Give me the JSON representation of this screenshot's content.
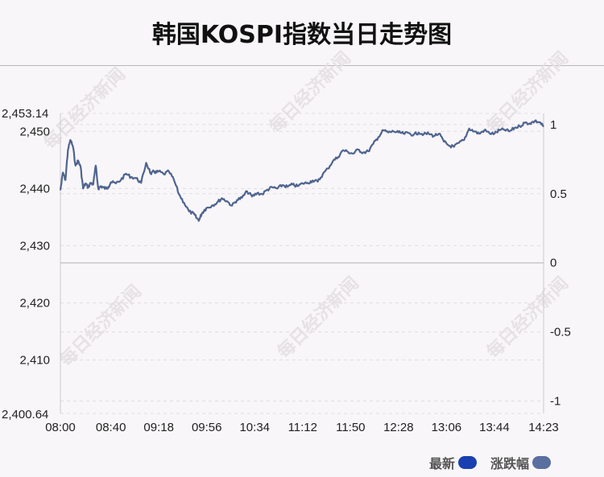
{
  "title": "韩国KOSPI指数当日走势图",
  "watermark": "每日经济新闻",
  "legend": [
    {
      "label": "最新",
      "color": "#1a3fb0"
    },
    {
      "label": "涨跌幅",
      "color": "#5a6fa0"
    }
  ],
  "colors": {
    "line": "#4f6490",
    "axis": "#cccccc",
    "grid": "#e0dde0",
    "text": "#222222"
  },
  "chart_data": {
    "type": "line",
    "ylim": [
      2400.64,
      2453.14
    ],
    "baseline": 2427.0,
    "y_ticks": [
      "2,453.14",
      "2,450",
      "2,440",
      "2,430",
      "2,420",
      "2,410",
      "2,400.64"
    ],
    "y_tick_values": [
      2453.14,
      2450,
      2440,
      2430,
      2420,
      2410,
      2400.64
    ],
    "y2_ticks": [
      "1",
      "0.5",
      "0",
      "-0.5",
      "-1"
    ],
    "y2_tick_values": [
      1,
      0.5,
      0,
      -0.5,
      -1
    ],
    "x_ticks": [
      "08:00",
      "08:40",
      "09:18",
      "09:56",
      "10:34",
      "11:12",
      "11:50",
      "12:28",
      "13:06",
      "13:44",
      "14:23"
    ],
    "series": [
      {
        "x": [
          "08:00",
          "08:02",
          "08:04",
          "08:06",
          "08:08",
          "08:10",
          "08:12",
          "08:14",
          "08:16",
          "08:18",
          "08:20",
          "08:22",
          "08:24",
          "08:26",
          "08:28",
          "08:30",
          "08:32",
          "08:34",
          "08:36",
          "08:38",
          "08:40",
          "08:44",
          "08:48",
          "08:52",
          "08:56",
          "09:00",
          "09:04",
          "09:08",
          "09:12",
          "09:14",
          "09:16",
          "09:18",
          "09:22",
          "09:26",
          "09:30",
          "09:34",
          "09:38",
          "09:42",
          "09:46",
          "09:48",
          "09:50",
          "09:52",
          "09:54",
          "09:56",
          "10:00",
          "10:04",
          "10:08",
          "10:12",
          "10:16",
          "10:20",
          "10:24",
          "10:28",
          "10:32",
          "10:36",
          "10:40",
          "10:44",
          "10:48",
          "10:52",
          "10:56",
          "11:00",
          "11:04",
          "11:08",
          "11:12",
          "11:16",
          "11:20",
          "11:24",
          "11:28",
          "11:32",
          "11:36",
          "11:40",
          "11:44",
          "11:48",
          "11:52",
          "11:56",
          "12:00",
          "12:04",
          "12:08",
          "12:12",
          "12:16",
          "12:20",
          "12:24",
          "12:28",
          "12:32",
          "12:36",
          "12:40",
          "12:44",
          "12:48",
          "12:52",
          "12:56",
          "13:00",
          "13:04",
          "13:08",
          "13:12",
          "13:16",
          "13:20",
          "13:24",
          "13:28",
          "13:32",
          "13:36",
          "13:40",
          "13:44",
          "13:48",
          "13:52",
          "13:56",
          "14:00",
          "14:04",
          "14:08",
          "14:12",
          "14:16",
          "14:20",
          "14:23"
        ],
        "values": [
          2439.7,
          2442.8,
          2441.5,
          2446.8,
          2448.5,
          2447.3,
          2444.0,
          2444.9,
          2443.8,
          2440.0,
          2440.9,
          2440.2,
          2441.0,
          2440.7,
          2444.0,
          2440.0,
          2440.4,
          2440.2,
          2440.0,
          2440.3,
          2441.1,
          2440.9,
          2441.5,
          2442.6,
          2442.0,
          2441.8,
          2441.0,
          2444.5,
          2442.5,
          2443.0,
          2442.8,
          2443.0,
          2442.5,
          2443.0,
          2441.5,
          2439.0,
          2437.5,
          2436.0,
          2435.5,
          2434.8,
          2434.5,
          2435.6,
          2436.2,
          2436.6,
          2437.0,
          2437.5,
          2438.3,
          2437.8,
          2437.0,
          2438.0,
          2438.4,
          2439.5,
          2438.6,
          2439.2,
          2439.0,
          2439.8,
          2440.2,
          2440.0,
          2440.6,
          2440.3,
          2440.7,
          2440.4,
          2440.9,
          2441.0,
          2441.4,
          2441.2,
          2442.5,
          2443.5,
          2444.8,
          2445.5,
          2446.7,
          2446.4,
          2446.1,
          2446.8,
          2446.3,
          2446.5,
          2447.8,
          2449.0,
          2450.2,
          2449.8,
          2450.0,
          2449.8,
          2449.6,
          2449.7,
          2449.4,
          2449.8,
          2449.5,
          2449.6,
          2449.2,
          2449.6,
          2448.2,
          2447.5,
          2447.3,
          2448.0,
          2448.5,
          2450.5,
          2450.0,
          2449.6,
          2450.2,
          2449.7,
          2449.6,
          2450.2,
          2450.3,
          2450.0,
          2450.6,
          2450.9,
          2451.5,
          2451.4,
          2451.8,
          2451.6,
          2450.8
        ]
      }
    ]
  }
}
